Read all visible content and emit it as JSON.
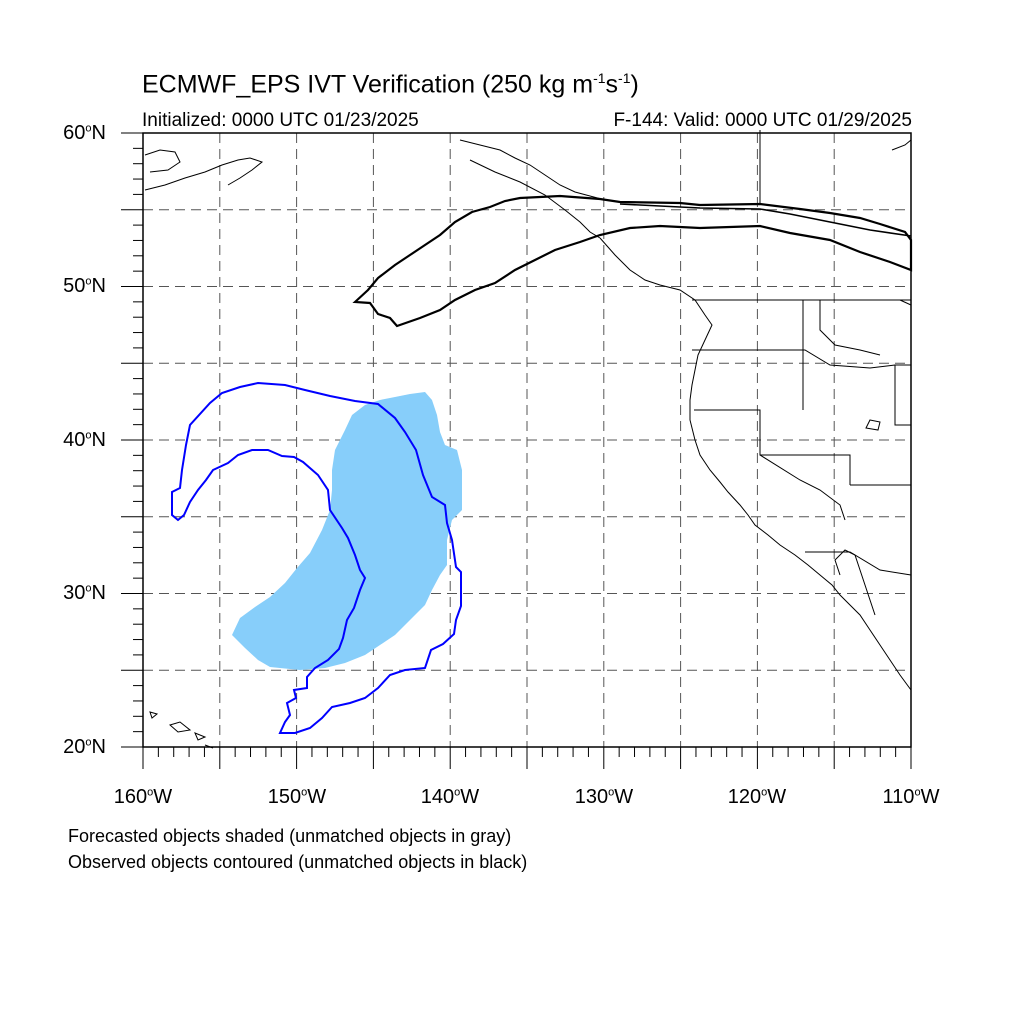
{
  "header": {
    "title_main": "ECMWF_EPS IVT Verification (250 kg m",
    "title_exp1": "-1",
    "title_mid": "s",
    "title_exp2": "-1",
    "title_end": ")",
    "initialized": "Initialized: 0000 UTC 01/23/2025",
    "valid": "F-144: Valid: 0000 UTC 01/29/2025"
  },
  "axes": {
    "lat_labels": [
      "60",
      "50",
      "40",
      "30",
      "20"
    ],
    "lat_suffix": "N",
    "lon_labels": [
      "160",
      "150",
      "140",
      "130",
      "120",
      "110"
    ],
    "lon_suffix": "W",
    "degree": "o",
    "lat_range": [
      20,
      60
    ],
    "lon_range": [
      -160,
      -110
    ],
    "major_grid_deg": 5,
    "grid": "dashed"
  },
  "legend": {
    "line1": "Forecasted objects shaded (unmatched objects in gray)",
    "line2": "Observed objects contoured (unmatched objects in black)"
  },
  "colors": {
    "forecast_shading": "#87cefa",
    "matched_observed_contour": "#0000ff",
    "unmatched_observed_contour": "#000000",
    "coastline": "#000000",
    "gridline": "#555555"
  }
}
